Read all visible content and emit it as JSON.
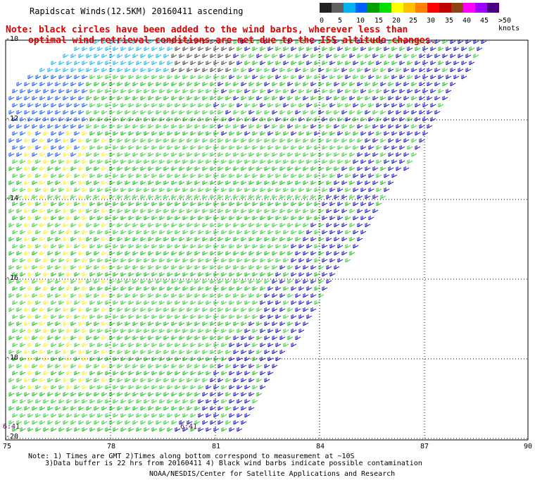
{
  "title": "Rapidscat Winds(12.5KM) 20160411 ascending",
  "note_line1": "Note: black circles have been added to the wind barbs, wherever less than",
  "note_line2": "optimal wind retrieval conditions are met due to the ISS altitude changes.",
  "legend": {
    "labels": [
      "0",
      "5",
      "10",
      "15",
      "20",
      "25",
      "30",
      "35",
      "40",
      "45",
      ">50 knots"
    ],
    "colors": [
      "#202020",
      "#606060",
      "#00b0f0",
      "#0060ff",
      "#00a000",
      "#00e000",
      "#ffff00",
      "#ffc000",
      "#ff8000",
      "#ff0000",
      "#c00000",
      "#8b4513",
      "#ff00ff",
      "#a000ff",
      "#4b0082"
    ]
  },
  "axes": {
    "lat_labels": [
      "-10",
      "-12",
      "-14",
      "-16",
      "-18",
      "-20"
    ],
    "lon_labels": [
      "75",
      "78",
      "81",
      "84",
      "87",
      "90"
    ]
  },
  "time_labels": [
    "6:41",
    "6:41"
  ],
  "footer": {
    "line1": "Note: 1) Times are GMT 2)Times along bottom correspond to measurement at ~10S",
    "line2": "3)Data buffer is 22 hrs from 20160411 4) Black wind barbs indicate possible contamination",
    "line3": "NOAA/NESDIS/Center for Satellite Applications and Research"
  }
}
